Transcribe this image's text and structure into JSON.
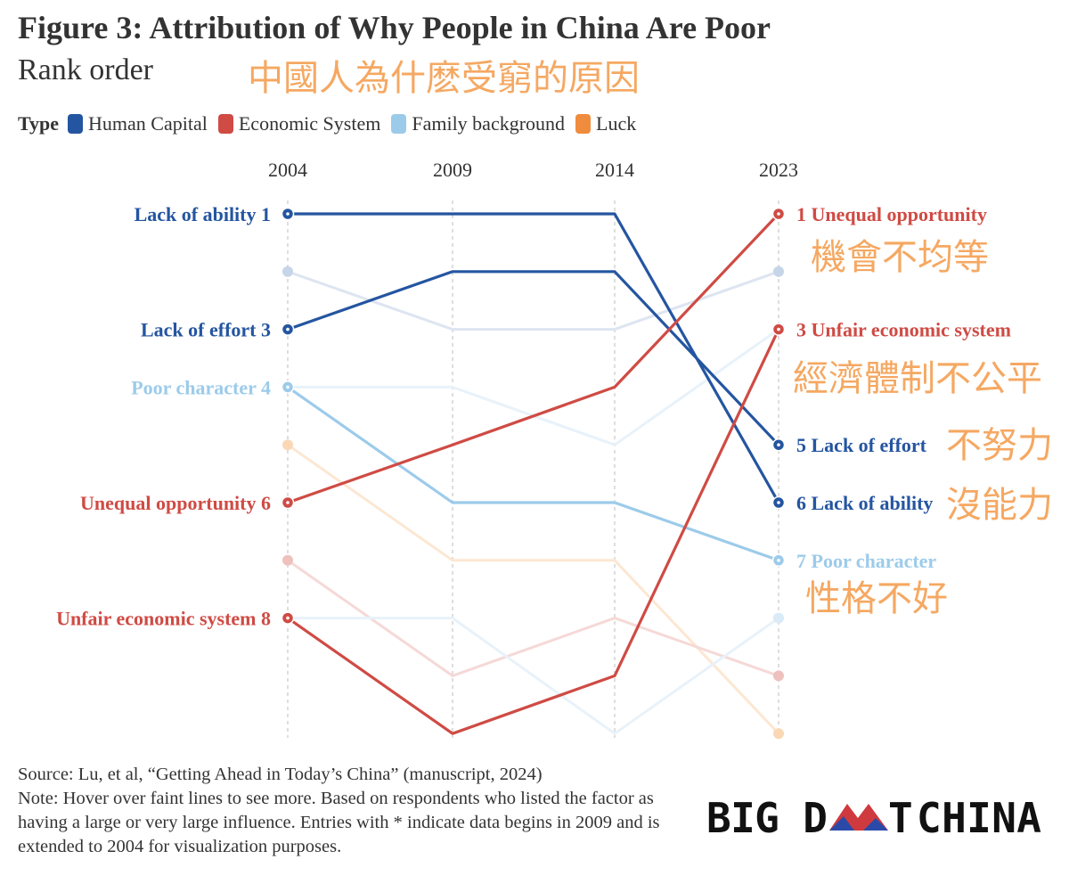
{
  "header": {
    "title": "Figure 3: Attribution of Why People in China Are Poor",
    "subtitle": "Rank order",
    "subtitle_zh": "中國人為什麽受窮的原因"
  },
  "legend": {
    "title": "Type",
    "items": [
      {
        "label": "Human Capital",
        "color": "#2455a0"
      },
      {
        "label": "Economic System",
        "color": "#cf4b44"
      },
      {
        "label": "Family background",
        "color": "#9ccbea"
      },
      {
        "label": "Luck",
        "color": "#f08c3e"
      }
    ]
  },
  "chart_data": {
    "type": "line",
    "chart_subtype": "bump",
    "x": [
      "2004",
      "2009",
      "2014",
      "2023"
    ],
    "y_scale": "rank (1 at top)",
    "ylim": [
      1,
      10
    ],
    "grid": "vertical dashed at each year",
    "series": [
      {
        "name": "Lack of ability",
        "type": "Human Capital",
        "color": "#2455a0",
        "faded": false,
        "values": [
          1,
          1,
          1,
          6
        ],
        "label_left": "Lack of ability 1",
        "label_right": "6 Lack of ability",
        "annotation_zh": "沒能力"
      },
      {
        "name": "Lack of effort",
        "type": "Human Capital",
        "color": "#2455a0",
        "faded": false,
        "values": [
          3,
          2,
          2,
          5
        ],
        "label_left": "Lack of effort 3",
        "label_right": "5 Lack of effort",
        "annotation_zh": "不努力"
      },
      {
        "name": "Poor character",
        "type": "Family background",
        "color": "#9ccbea",
        "faded": false,
        "values": [
          4,
          6,
          6,
          7
        ],
        "label_left": "Poor character 4",
        "label_right": "7 Poor character",
        "annotation_zh": "性格不好"
      },
      {
        "name": "Unequal opportunity",
        "type": "Economic System",
        "color": "#cf4b44",
        "faded": false,
        "values": [
          6,
          5,
          4,
          1
        ],
        "label_left": "Unequal opportunity 6",
        "label_right": "1 Unequal opportunity",
        "annotation_zh": "機會不均等"
      },
      {
        "name": "Unfair economic system",
        "type": "Economic System",
        "color": "#cf4b44",
        "faded": false,
        "values": [
          8,
          10,
          9,
          3
        ],
        "label_left": "Unfair economic system 8",
        "label_right": "3 Unfair economic system",
        "annotation_zh": "經濟體制不公平"
      },
      {
        "color": "#a9bedc",
        "faded": true,
        "values": [
          2,
          3,
          3,
          2
        ]
      },
      {
        "color": "#c6dff2",
        "faded": true,
        "values": [
          4,
          4,
          5,
          3
        ]
      },
      {
        "color": "#f7c38f",
        "faded": true,
        "values": [
          5,
          7,
          7,
          10
        ]
      },
      {
        "color": "#e5a09b",
        "faded": true,
        "values": [
          7,
          9,
          8,
          9
        ]
      },
      {
        "color": "#c6dff2",
        "faded": true,
        "values": [
          8,
          8,
          10,
          8
        ]
      }
    ]
  },
  "footer": {
    "source": "Source: Lu, et al, “Getting Ahead in Today’s China” (manuscript, 2024)",
    "note": "Note: Hover over faint lines to see more. Based on respondents who listed the factor as having a large or very large influence. Entries with * indicate data begins in 2009 and is extended to 2004 for visualization purposes."
  },
  "logo": {
    "text_left": "BIG D",
    "text_mid": "T",
    "text_right": "CHINA",
    "colors": {
      "red": "#cf3a3f",
      "blue": "#2b4aa8",
      "dark": "#111111"
    }
  }
}
